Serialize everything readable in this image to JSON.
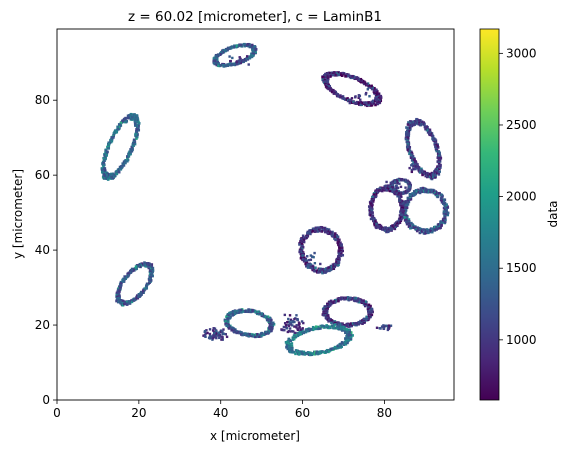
{
  "chart_data": {
    "type": "heatmap",
    "title": "z = 60.02 [micrometer], c = LaminB1",
    "xlabel": "x [micrometer]",
    "ylabel": "y [micrometer]",
    "xlim": [
      0,
      97
    ],
    "ylim": [
      0,
      99
    ],
    "xticks": [
      0,
      20,
      40,
      60,
      80
    ],
    "yticks": [
      0,
      20,
      40,
      60,
      80
    ],
    "colorbar": {
      "label": "data",
      "range": [
        580,
        3170
      ],
      "ticks": [
        1000,
        1500,
        2000,
        2500,
        3000
      ],
      "colormap": "viridis",
      "stops": [
        "#440154",
        "#482878",
        "#3e4989",
        "#31688e",
        "#26828e",
        "#1f9e89",
        "#35b779",
        "#6ece58",
        "#b5de2b",
        "#fde725"
      ]
    },
    "nuclei": [
      {
        "cx": 43.5,
        "cy": 92,
        "rx": 5,
        "ry": 2.2,
        "rot": 20,
        "level": 1300
      },
      {
        "cx": 72,
        "cy": 83,
        "rx": 7,
        "ry": 3,
        "rot": -25,
        "level": 850
      },
      {
        "cx": 15.5,
        "cy": 67.5,
        "rx": 2.8,
        "ry": 8.5,
        "rot": -22,
        "level": 1450
      },
      {
        "cx": 89.5,
        "cy": 67,
        "rx": 3.3,
        "ry": 7.5,
        "rot": 18,
        "level": 1000
      },
      {
        "cx": 84,
        "cy": 57,
        "rx": 2.2,
        "ry": 1.8,
        "rot": 0,
        "level": 1100
      },
      {
        "cx": 90,
        "cy": 50.5,
        "rx": 5,
        "ry": 5.5,
        "rot": 0,
        "level": 1200
      },
      {
        "cx": 80.5,
        "cy": 51,
        "rx": 3.8,
        "ry": 5.5,
        "rot": 0,
        "level": 900
      },
      {
        "cx": 64.5,
        "cy": 40,
        "rx": 4.8,
        "ry": 5.5,
        "rot": 10,
        "level": 900
      },
      {
        "cx": 19,
        "cy": 31,
        "rx": 2.8,
        "ry": 6,
        "rot": -35,
        "level": 1250
      },
      {
        "cx": 47,
        "cy": 20.5,
        "rx": 5.5,
        "ry": 3.2,
        "rot": -10,
        "level": 1300
      },
      {
        "cx": 71,
        "cy": 23.5,
        "rx": 5.5,
        "ry": 3.5,
        "rot": 0,
        "level": 950
      },
      {
        "cx": 64,
        "cy": 16,
        "rx": 7.5,
        "ry": 3.3,
        "rot": 12,
        "level": 1550
      }
    ],
    "speckle_clusters": [
      {
        "cx": 38.5,
        "cy": 17.5,
        "sx": 3.5,
        "sy": 1.8,
        "n": 70
      },
      {
        "cx": 57.5,
        "cy": 20,
        "sx": 3.5,
        "sy": 3,
        "n": 55
      },
      {
        "cx": 80,
        "cy": 19.5,
        "sx": 2,
        "sy": 1.2,
        "n": 18
      },
      {
        "cx": 83,
        "cy": 56.5,
        "sx": 3,
        "sy": 2,
        "n": 30
      },
      {
        "cx": 62,
        "cy": 37,
        "sx": 3,
        "sy": 2.5,
        "n": 14
      },
      {
        "cx": 44,
        "cy": 90.5,
        "sx": 3,
        "sy": 1.5,
        "n": 20
      },
      {
        "cx": 74,
        "cy": 81,
        "sx": 5,
        "sy": 2.5,
        "n": 14
      },
      {
        "cx": 87,
        "cy": 62,
        "sx": 2,
        "sy": 1.5,
        "n": 10
      }
    ]
  }
}
